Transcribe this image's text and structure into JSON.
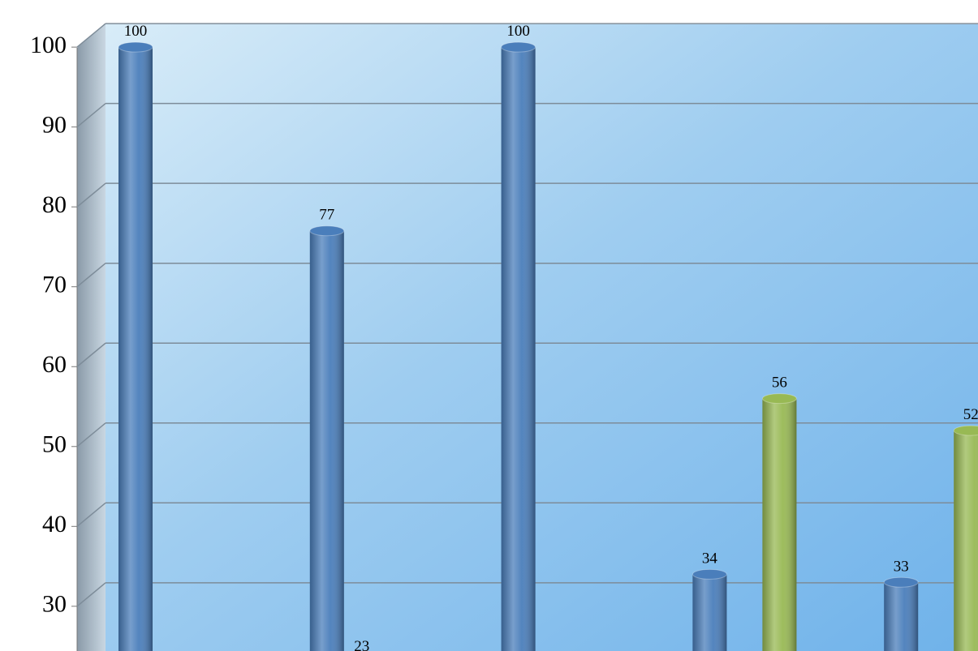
{
  "chart_data": {
    "type": "bar",
    "categories": [
      null,
      null,
      null,
      null,
      null
    ],
    "series": [
      {
        "color": "#4a7ebb",
        "values": [
          100,
          77,
          100,
          34,
          33
        ]
      },
      {
        "color": "#be4b48",
        "values": [
          null,
          23,
          null,
          null,
          null
        ]
      },
      {
        "color": "#98b954",
        "values": [
          null,
          null,
          null,
          56,
          52
        ]
      }
    ],
    "ylim": [
      24.4,
      105.9
    ],
    "yticks": [
      30,
      40,
      50,
      60,
      70,
      80,
      90,
      100
    ],
    "grid": true
  }
}
